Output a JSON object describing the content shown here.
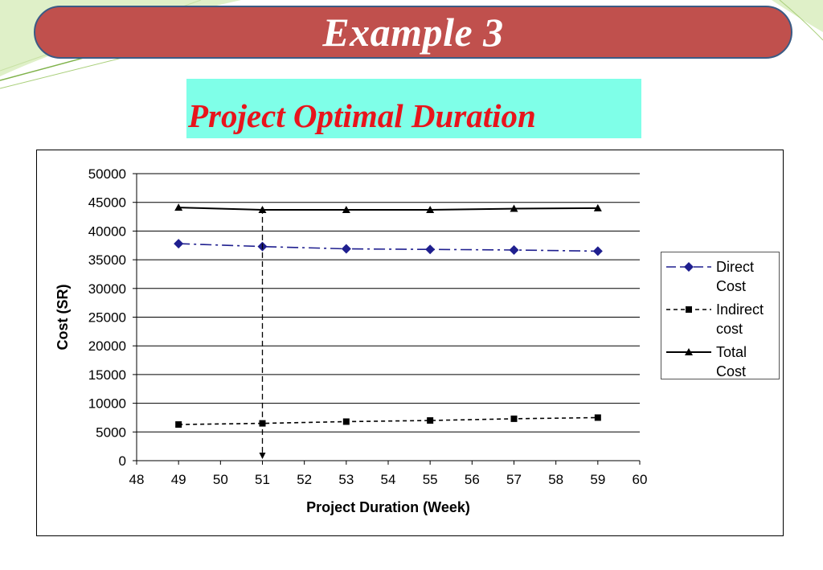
{
  "slide": {
    "title": "Example 3",
    "subtitle": "Project Optimal Duration",
    "colors": {
      "banner_fill": "#c0504d",
      "banner_border": "#3b5b85",
      "subtitle_fill": "#7fffe8",
      "subtitle_text": "#e8141c"
    }
  },
  "chart_data": {
    "type": "line",
    "title": "",
    "xlabel": "Project Duration (Week)",
    "ylabel": "Cost (SR)",
    "xlim": [
      48,
      60
    ],
    "ylim": [
      0,
      50000
    ],
    "x_ticks": [
      48,
      49,
      50,
      51,
      52,
      53,
      54,
      55,
      56,
      57,
      58,
      59,
      60
    ],
    "y_ticks": [
      0,
      5000,
      10000,
      15000,
      20000,
      25000,
      30000,
      35000,
      40000,
      45000,
      50000
    ],
    "grid": "horizontal",
    "legend_position": "right",
    "x": [
      49,
      51,
      53,
      55,
      57,
      59
    ],
    "series": [
      {
        "name": "Direct Cost",
        "values": [
          37800,
          37300,
          36900,
          36800,
          36700,
          36500
        ],
        "color": "#1f1f8f",
        "marker": "diamond",
        "line_style": "dash-dot"
      },
      {
        "name": "Indirect cost",
        "values": [
          6300,
          6500,
          6800,
          7000,
          7300,
          7500
        ],
        "color": "#000000",
        "marker": "square",
        "line_style": "dashed"
      },
      {
        "name": "Total Cost",
        "values": [
          44100,
          43700,
          43700,
          43700,
          43900,
          44000
        ],
        "color": "#000000",
        "marker": "triangle",
        "line_style": "solid"
      }
    ],
    "legend_labels": [
      [
        "Direct",
        "Cost"
      ],
      [
        "Indirect",
        "cost"
      ],
      [
        "Total",
        "Cost"
      ]
    ],
    "annotations": [
      {
        "type": "vertical-arrow",
        "x": 51,
        "from_y": 44000,
        "to_y": 0,
        "style": "dashed"
      }
    ]
  }
}
